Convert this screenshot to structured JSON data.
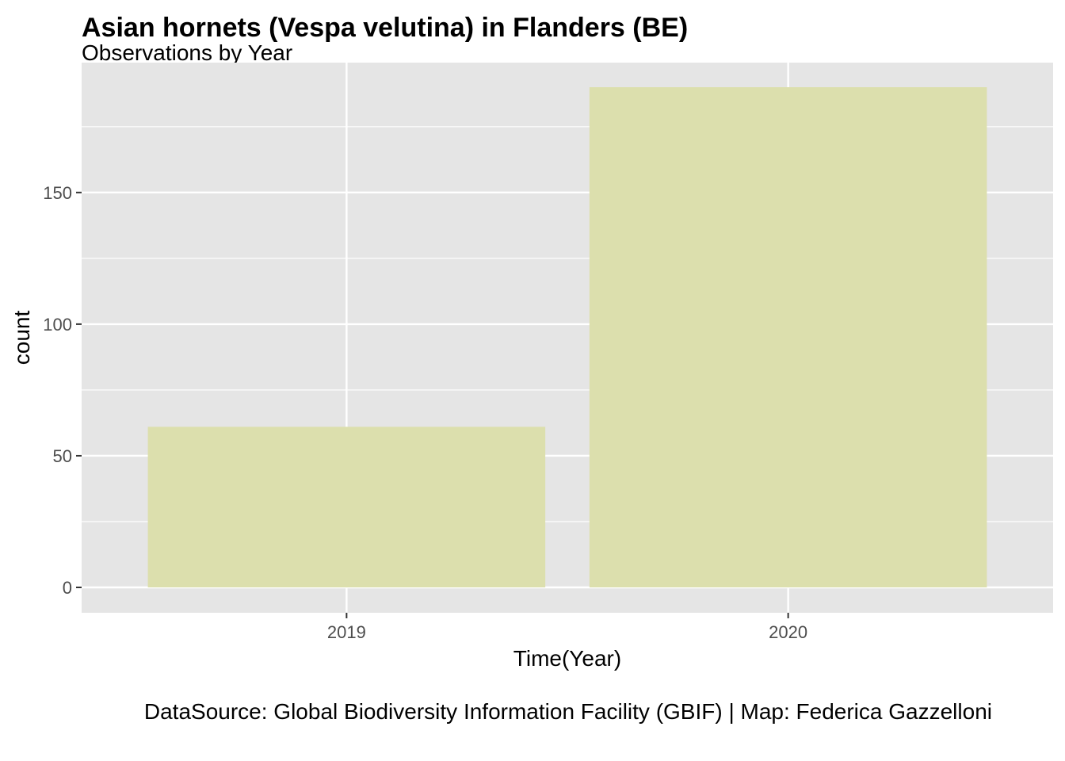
{
  "chart_data": {
    "type": "bar",
    "title": "Asian hornets (Vespa velutina) in Flanders (BE)",
    "subtitle": "Observations by Year",
    "xlabel": "Time(Year)",
    "ylabel": "count",
    "caption": "DataSource: Global Biodiversity Information Facility (GBIF) | Map: Federica Gazzelloni",
    "categories": [
      "2019",
      "2020"
    ],
    "values": [
      61,
      190
    ],
    "ylim": [
      0,
      190
    ],
    "y_ticks": [
      0,
      50,
      100,
      150
    ],
    "bar_color": "#dcdfad",
    "panel_color": "#e5e5e5",
    "grid": true,
    "legend": "none"
  }
}
